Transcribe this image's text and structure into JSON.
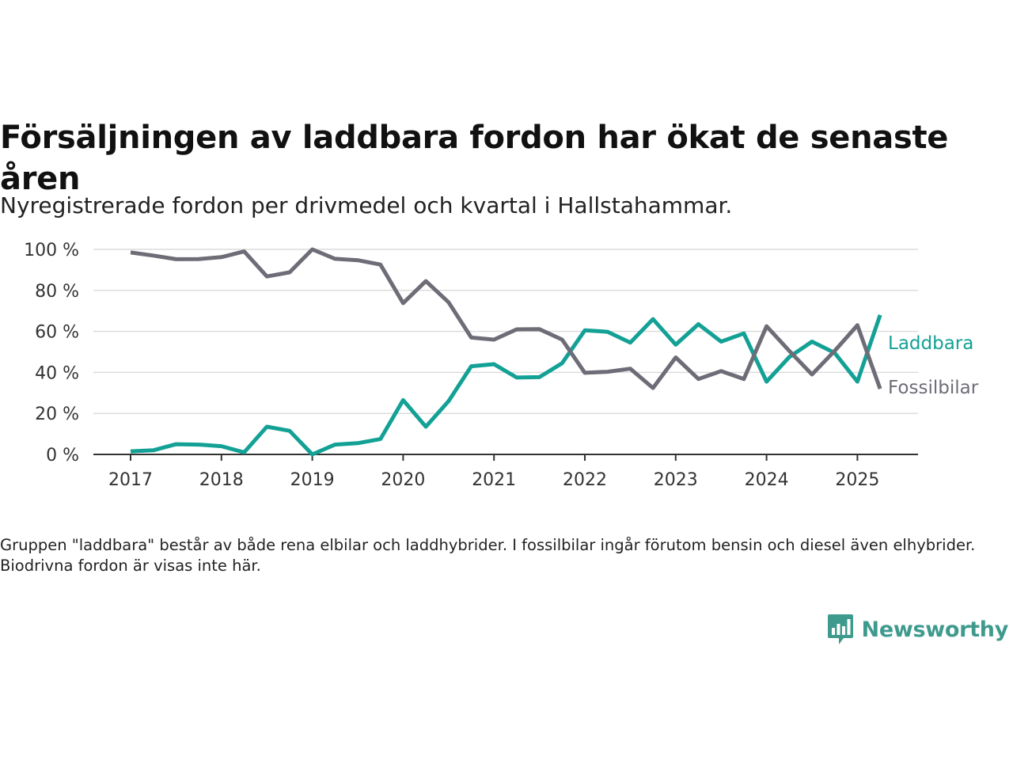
{
  "title": "Försäljningen av laddbara fordon har ökat de senaste åren",
  "subtitle": "Nyregistrerade fordon per drivmedel och kvartal i Hallstahammar.",
  "note": "Gruppen \"laddbara\" består av både rena elbilar och laddhybrider. I fossilbilar ingår förutom bensin och diesel även elhybrider. Biodrivna fordon är visas inte här.",
  "brand": {
    "name": "Newsworthy",
    "icon": "bar-chart-icon",
    "color": "#3f9a8e"
  },
  "chart_data": {
    "type": "line",
    "x_start": "2017 Q1",
    "x_step": "quarter",
    "x_tick_labels": [
      "2017",
      "2018",
      "2019",
      "2020",
      "2021",
      "2022",
      "2023",
      "2024",
      "2025"
    ],
    "y_ticks": [
      0,
      20,
      40,
      60,
      80,
      100
    ],
    "y_tick_suffix": " %",
    "ylim": [
      0,
      100
    ],
    "grid": "horizontal",
    "legend": "inline-right",
    "series": [
      {
        "name": "Laddbara",
        "color": "#13a196",
        "values": [
          1.5,
          2,
          5,
          4.8,
          4,
          1,
          13.5,
          11.5,
          0,
          4.8,
          5.5,
          7.5,
          26.5,
          13.5,
          26,
          43,
          44,
          37.5,
          37.7,
          44.5,
          60.5,
          59.8,
          54.5,
          66,
          53.5,
          63.5,
          55,
          59,
          35.5,
          47.5,
          55,
          49.5,
          35.5,
          68
        ]
      },
      {
        "name": "Fossilbilar",
        "color": "#6e6d77",
        "values": [
          98.5,
          97,
          95.2,
          95.3,
          96.2,
          99,
          86.8,
          88.8,
          100,
          95.4,
          94.7,
          92.6,
          73.8,
          84.5,
          74.2,
          57,
          56,
          61,
          61.1,
          56,
          39.8,
          40.3,
          41.8,
          32.4,
          47.3,
          36.8,
          40.6,
          36.8,
          62.5,
          50.5,
          39,
          50.5,
          63,
          32
        ]
      }
    ]
  }
}
